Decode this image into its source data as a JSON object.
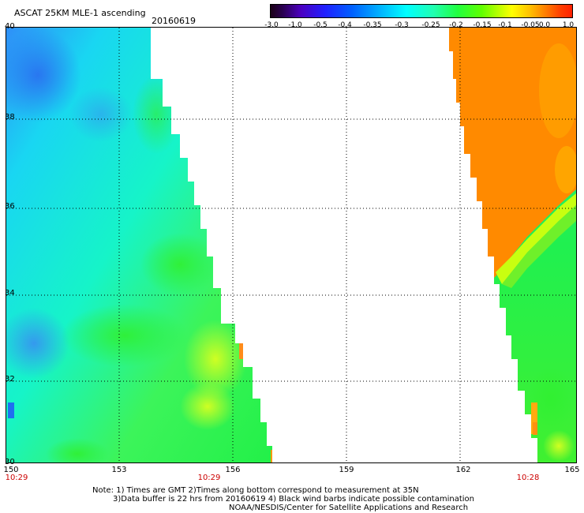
{
  "header": {
    "title": "ASCAT 25KM MLE-1 ascending",
    "date": "20160619"
  },
  "colorbar": {
    "labels": [
      "-3.0",
      "-1.0",
      "-0.5",
      "-0.4",
      "-0.35",
      "-0.3",
      "-0.25",
      "-0.2",
      "-0.15",
      "-0.1",
      "-0.05",
      "0.0",
      "1.0"
    ],
    "colors": [
      "#1a0016",
      "#4b00c0",
      "#2020ff",
      "#00b0ff",
      "#00ffff",
      "#20ff40",
      "#ffff00",
      "#ff8000",
      "#ff2000"
    ]
  },
  "map": {
    "y_labels": [
      "40",
      "38",
      "36",
      "34",
      "32",
      "30"
    ],
    "x_labels": [
      "150",
      "153",
      "156",
      "159",
      "162",
      "165"
    ],
    "time_labels": [
      "10:29",
      "10:29",
      "10:28"
    ],
    "lat_range": [
      30,
      40
    ],
    "lon_range": [
      150,
      165
    ]
  },
  "notes": {
    "line1": "Note: 1) Times are GMT 2)Times along bottom correspond to measurement at 35N",
    "line2": "3)Data buffer is 22 hrs from 20160619 4) Black wind barbs indicate possible contamination",
    "line3": "NOAA/NESDIS/Center for Satellite Applications and Research"
  }
}
